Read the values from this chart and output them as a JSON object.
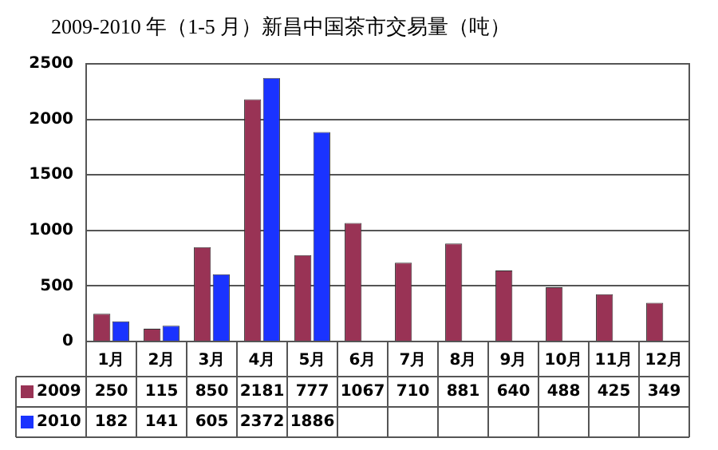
{
  "chart_data": {
    "type": "bar",
    "title": "2009-2010 年（1-5 月）新昌中国茶市交易量（吨）",
    "categories": [
      "1月",
      "2月",
      "3月",
      "4月",
      "5月",
      "6月",
      "7月",
      "8月",
      "9月",
      "10月",
      "11月",
      "12月"
    ],
    "series": [
      {
        "name": "2009",
        "color": "#993355",
        "values": [
          250,
          115,
          850,
          2181,
          777,
          1067,
          710,
          881,
          640,
          488,
          425,
          349
        ]
      },
      {
        "name": "2010",
        "color": "#1a33ff",
        "values": [
          182,
          141,
          605,
          2372,
          1886,
          null,
          null,
          null,
          null,
          null,
          null,
          null
        ]
      }
    ],
    "ylim": [
      0,
      2500
    ],
    "yticks": [
      0,
      500,
      1000,
      1500,
      2000,
      2500
    ],
    "grid": "y",
    "legend": "bottom left",
    "data_labels": true
  }
}
